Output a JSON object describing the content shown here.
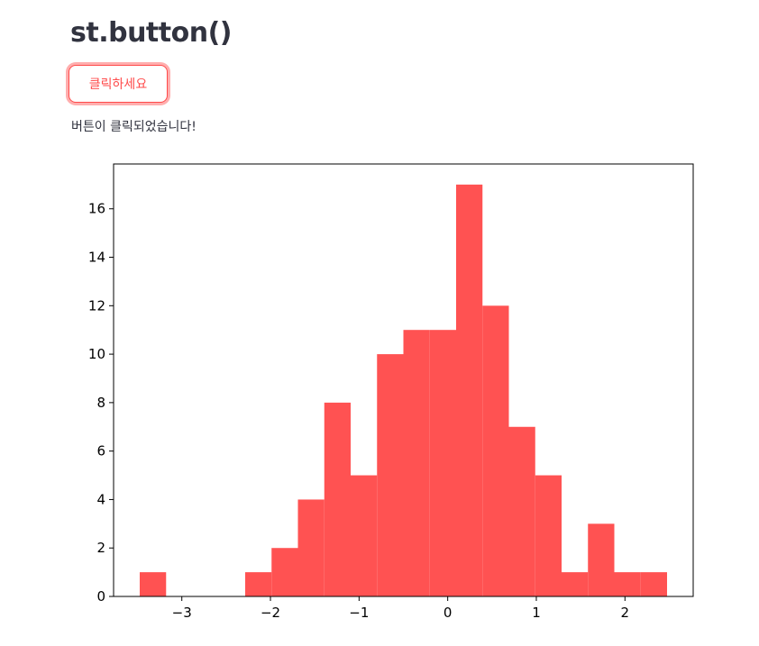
{
  "page": {
    "title": "st.button()",
    "button_label": "클릭하세요",
    "message": "버튼이 클릭되었습니다!"
  },
  "colors": {
    "accent": "#ff4b4b",
    "bar_fill": "#ff5252",
    "text": "#31333f"
  },
  "chart_data": {
    "type": "bar",
    "subtype": "histogram",
    "bin_edges": [
      -3.475,
      -3.1775,
      -2.88,
      -2.5825,
      -2.285,
      -1.9875,
      -1.69,
      -1.3925,
      -1.095,
      -0.7975,
      -0.5,
      -0.2025,
      0.095,
      0.3925,
      0.69,
      0.9875,
      1.285,
      1.5825,
      1.88,
      2.1775,
      2.475
    ],
    "values": [
      1,
      0,
      0,
      0,
      1,
      2,
      4,
      8,
      5,
      10,
      11,
      11,
      17,
      12,
      7,
      5,
      1,
      3,
      1,
      1
    ],
    "xlim": [
      -3.77,
      2.77
    ],
    "ylim": [
      0,
      17.85
    ],
    "xticks": [
      -3,
      -2,
      -1,
      0,
      1,
      2
    ],
    "xtick_labels": [
      "−3",
      "−2",
      "−1",
      "0",
      "1",
      "2"
    ],
    "yticks": [
      0,
      2,
      4,
      6,
      8,
      10,
      12,
      14,
      16
    ],
    "ytick_labels": [
      "0",
      "2",
      "4",
      "6",
      "8",
      "10",
      "12",
      "14",
      "16"
    ],
    "grid": false,
    "title": "",
    "xlabel": "",
    "ylabel": ""
  }
}
